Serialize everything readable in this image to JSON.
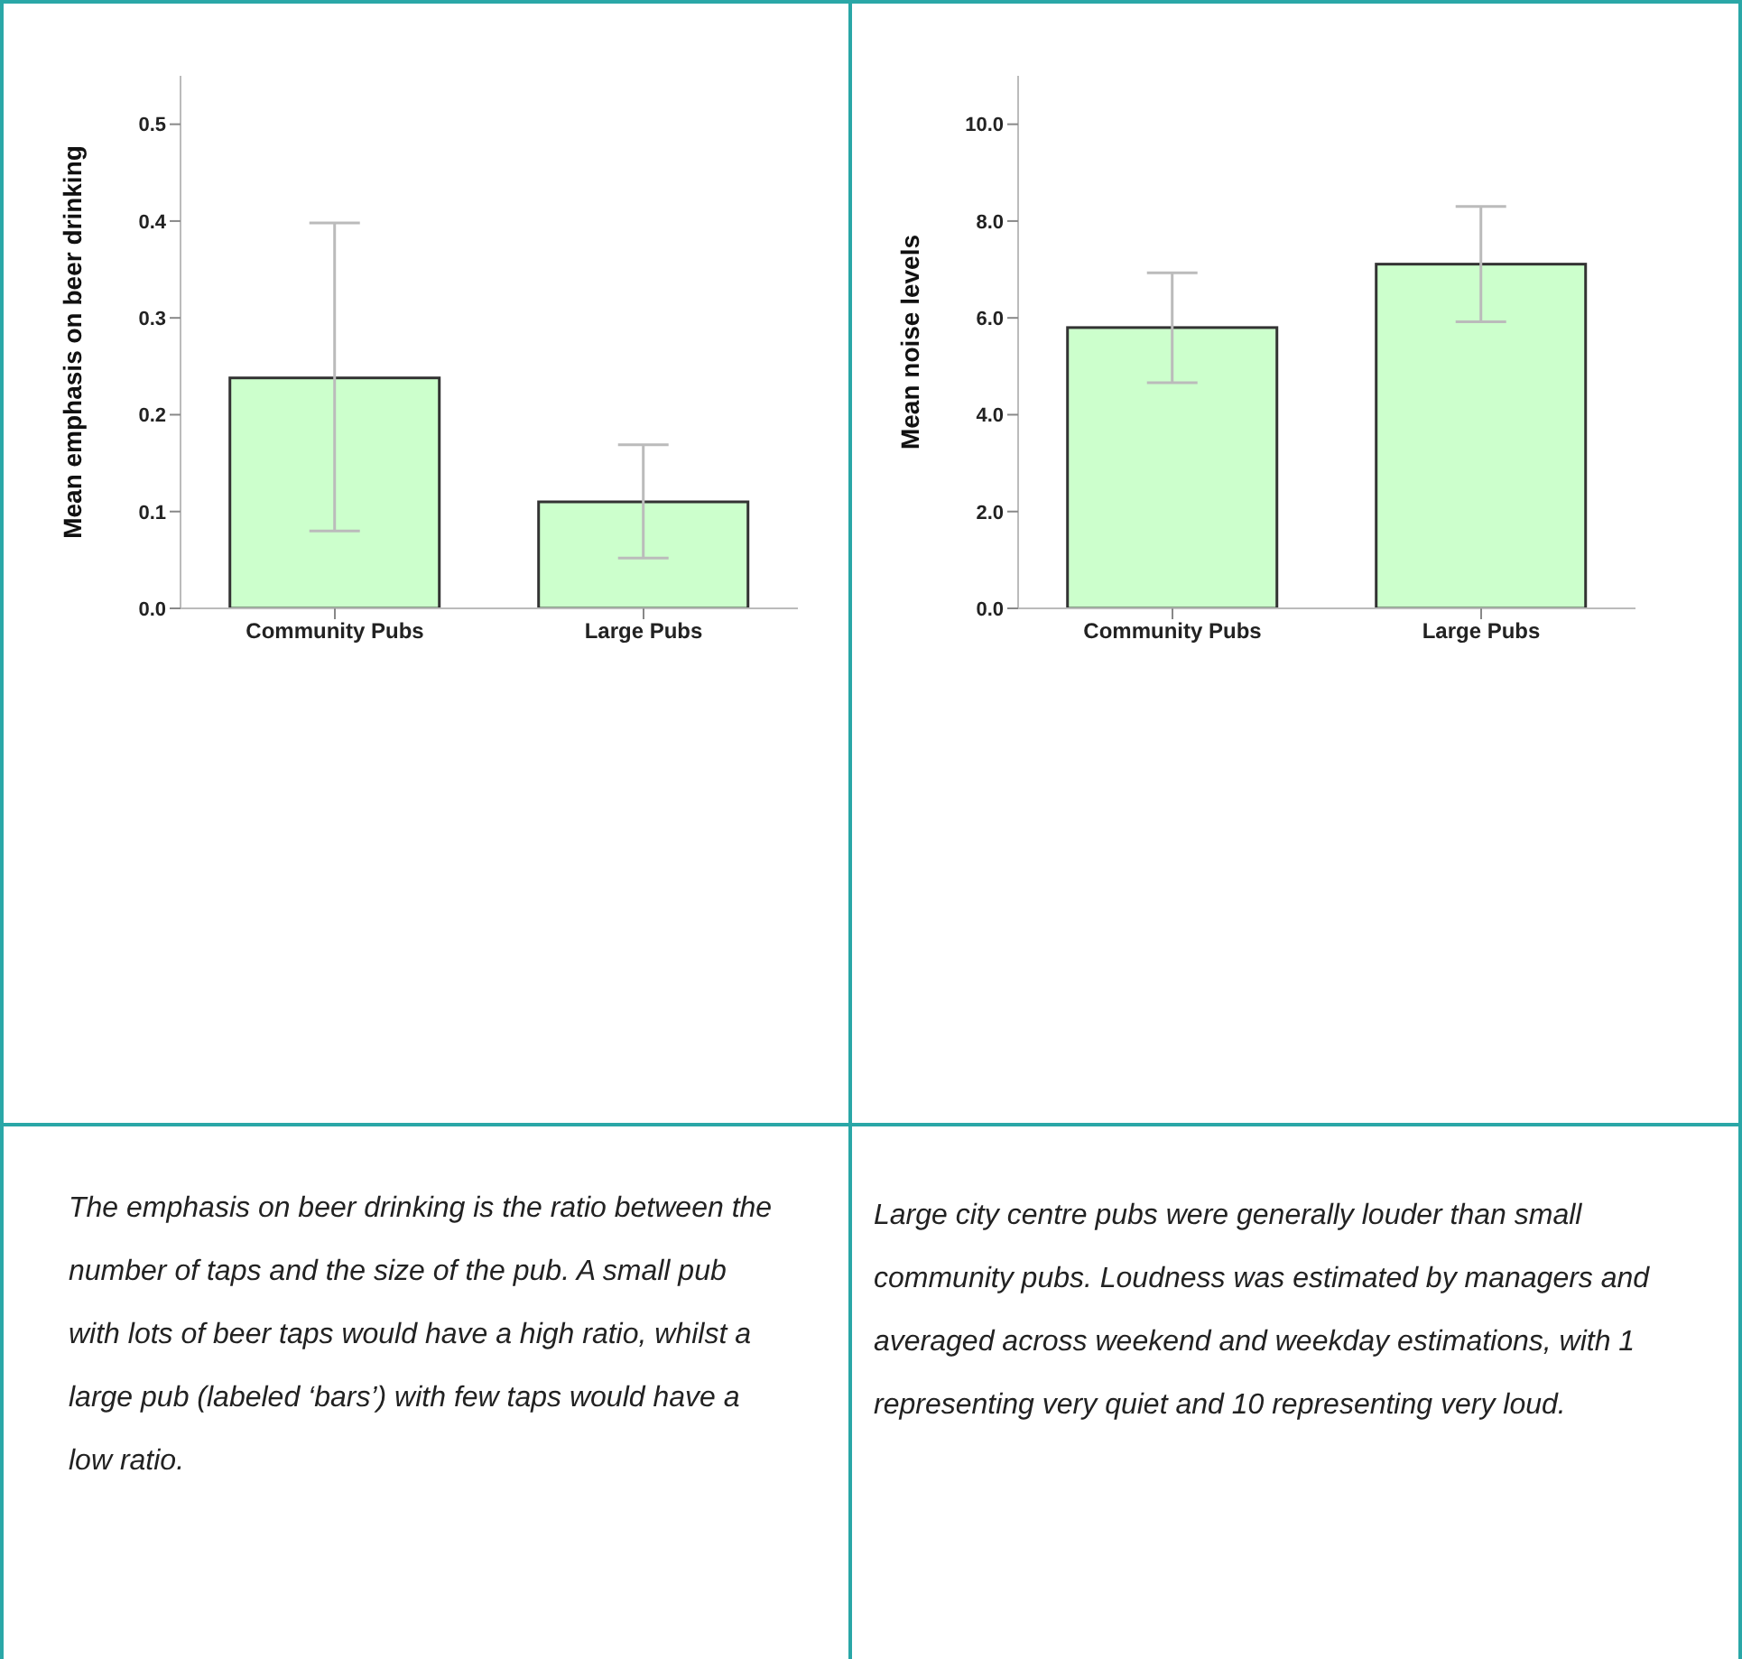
{
  "chart_data": [
    {
      "type": "bar",
      "categories": [
        "Community Pubs",
        "Large Pubs"
      ],
      "values": [
        0.238,
        0.11
      ],
      "color": "#ccffcc",
      "errors": [
        [
          0.08,
          0.398
        ],
        [
          0.052,
          0.169
        ]
      ],
      "ylabel": "Mean emphasis on beer drinking",
      "ylim": [
        0,
        0.55
      ],
      "yticks": [
        {
          "value": 0,
          "label": "0.0"
        },
        {
          "value": 0.1,
          "label": "0.1"
        },
        {
          "value": 0.2,
          "label": "0.2"
        },
        {
          "value": 0.3,
          "label": "0.3"
        },
        {
          "value": 0.4,
          "label": "0.4"
        },
        {
          "value": 0.5,
          "label": "0.5"
        }
      ],
      "annotations": [
        "The emphasis on beer drinking is the ratio between the number of taps and the size of the pub. A small pub with lots of beer taps would have a high ratio, whilst a large pub (labeled ‘bars’) with few taps would have a low ratio."
      ]
    },
    {
      "type": "bar",
      "categories": [
        "Community Pubs",
        "Large Pubs"
      ],
      "values": [
        5.8,
        7.11
      ],
      "color": "#ccffcc",
      "errors": [
        [
          4.66,
          6.93
        ],
        [
          5.92,
          8.3
        ]
      ],
      "ylabel": "Mean noise levels",
      "ylim": [
        0,
        11
      ],
      "yticks": [
        {
          "value": 0,
          "label": "0.0"
        },
        {
          "value": 2,
          "label": "2.0"
        },
        {
          "value": 4,
          "label": "4.0"
        },
        {
          "value": 6,
          "label": "6.0"
        },
        {
          "value": 8,
          "label": "8.0"
        },
        {
          "value": 10,
          "label": "10.0"
        }
      ],
      "annotations": [
        "Large city centre pubs were generally louder than small community pubs. Loudness was estimated by managers and averaged across weekend and weekday estimations, with 1 representing very quiet and 10 representing very loud."
      ]
    }
  ]
}
